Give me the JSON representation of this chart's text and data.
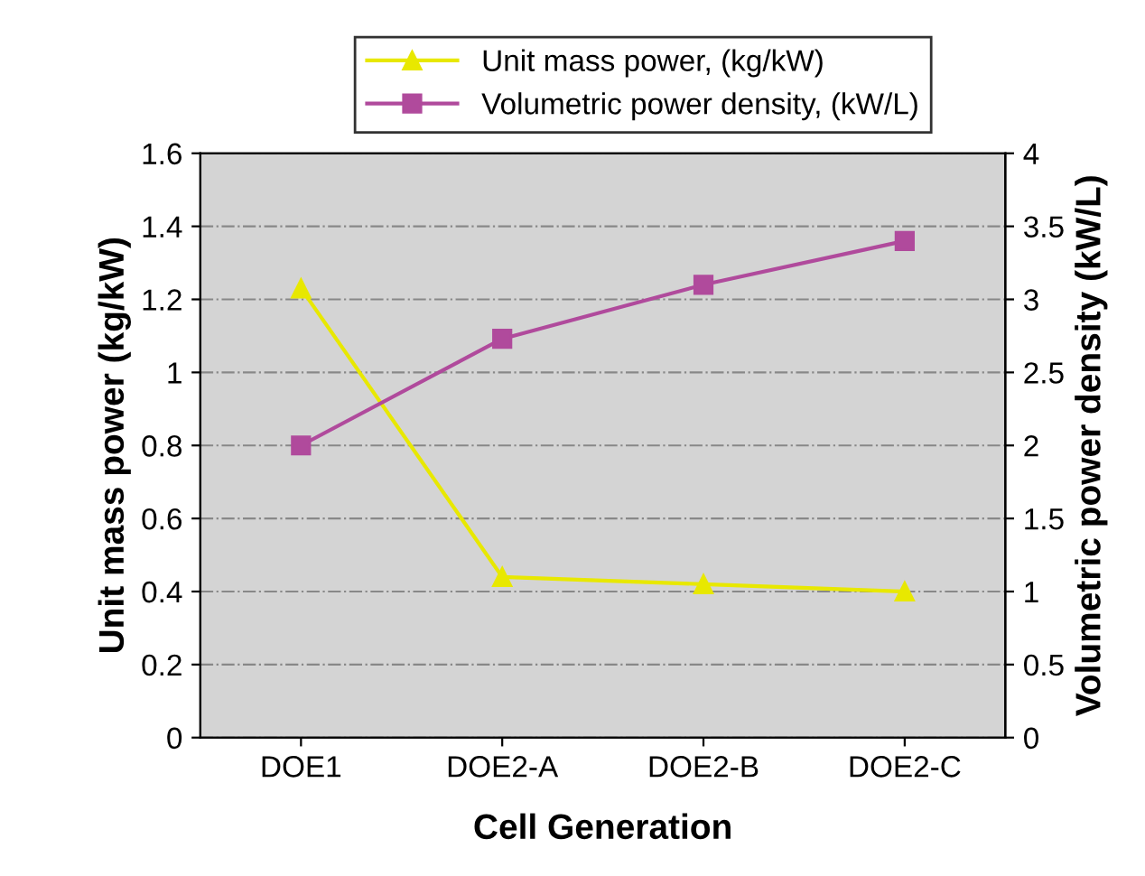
{
  "chart_data": {
    "type": "line",
    "xlabel": "Cell Generation",
    "ylabel": "Unit mass power (kg/kW)",
    "y2label": "Volumetric power density (kW/L)",
    "categories": [
      "DOE1",
      "DOE2-A",
      "DOE2-B",
      "DOE2-C"
    ],
    "series": [
      {
        "name": "Unit mass power, (kg/kW)",
        "color": "#e8e800",
        "marker": "triangle",
        "values": [
          1.23,
          0.44,
          0.42,
          0.4
        ]
      },
      {
        "name": "Volumetric power density, (kW/L)",
        "color": "#b04a9c",
        "marker": "square",
        "axis": "y2",
        "values": [
          2.0,
          2.73,
          3.1,
          3.4
        ]
      }
    ],
    "ylim": [
      0,
      1.6
    ],
    "yticks": [
      0,
      0.2,
      0.4,
      0.6,
      0.8,
      1,
      1.2,
      1.4,
      1.6
    ],
    "y2lim": [
      0,
      4
    ],
    "y2ticks": [
      0,
      0.5,
      1,
      1.5,
      2,
      2.5,
      3,
      3.5,
      4
    ],
    "grid": "y",
    "legend": "top",
    "line_style": "solid"
  }
}
